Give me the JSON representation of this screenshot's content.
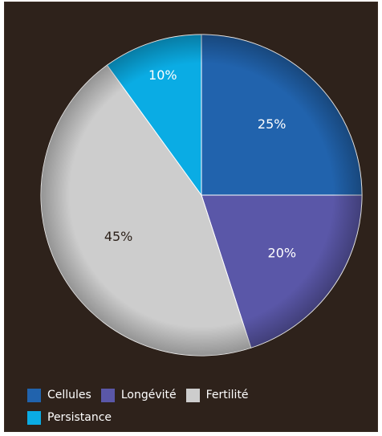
{
  "chart_data": {
    "type": "pie",
    "title": "",
    "slices": [
      {
        "label": "Cellules",
        "value": 25,
        "display": "25%",
        "color": "#2163ad",
        "label_color": "#ffffff"
      },
      {
        "label": "Longévité",
        "value": 20,
        "display": "20%",
        "color": "#5a57a8",
        "label_color": "#ffffff"
      },
      {
        "label": "Fertilité",
        "value": 45,
        "display": "45%",
        "color": "#cdcdcd",
        "label_color": "#2a1f18"
      },
      {
        "label": "Persistance",
        "value": 10,
        "display": "10%",
        "color": "#0aace4",
        "label_color": "#ffffff"
      }
    ],
    "start_angle_deg": 0,
    "direction": "clockwise",
    "legend_position": "bottom-left"
  },
  "colors": {
    "background": "#2e221b",
    "legend_text": "#ffffff"
  }
}
